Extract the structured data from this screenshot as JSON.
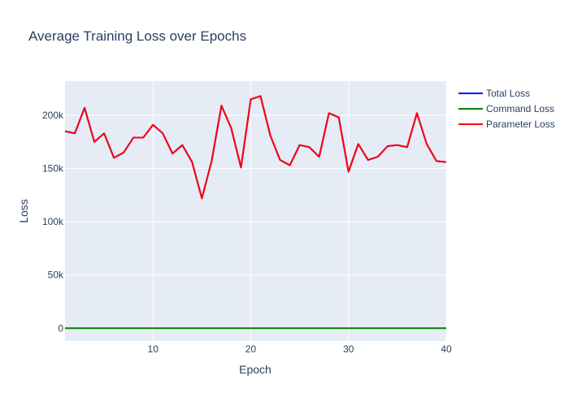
{
  "chart_data": {
    "type": "line",
    "title": "Average Training Loss over Epochs",
    "xlabel": "Epoch",
    "ylabel": "Loss",
    "xlim": [
      1,
      40
    ],
    "ylim": [
      -12000,
      232000
    ],
    "xticks": [
      10,
      20,
      30,
      40
    ],
    "xtick_labels": [
      "10",
      "20",
      "30",
      "40"
    ],
    "yticks": [
      0,
      50000,
      100000,
      150000,
      200000
    ],
    "ytick_labels": [
      "0",
      "50k",
      "100k",
      "150k",
      "200k"
    ],
    "grid": true,
    "legend_position": "top-right",
    "x": [
      1,
      2,
      3,
      4,
      5,
      6,
      7,
      8,
      9,
      10,
      11,
      12,
      13,
      14,
      15,
      16,
      17,
      18,
      19,
      20,
      21,
      22,
      23,
      24,
      25,
      26,
      27,
      28,
      29,
      30,
      31,
      32,
      33,
      34,
      35,
      36,
      37,
      38,
      39,
      40
    ],
    "series": [
      {
        "name": "Total Loss",
        "color": "#0000ff",
        "values": [
          185000,
          183000,
          207000,
          175000,
          183000,
          160000,
          165000,
          179000,
          179000,
          191000,
          183000,
          164000,
          172000,
          156000,
          122000,
          157000,
          209000,
          188000,
          151000,
          215000,
          218000,
          181000,
          158000,
          153000,
          172000,
          170000,
          161000,
          202000,
          198000,
          147000,
          173000,
          158000,
          161000,
          171000,
          172000,
          170000,
          202000,
          173000,
          157000,
          156000
        ]
      },
      {
        "name": "Command Loss",
        "color": "#008000",
        "values": [
          0,
          0,
          0,
          0,
          0,
          0,
          0,
          0,
          0,
          0,
          0,
          0,
          0,
          0,
          0,
          0,
          0,
          0,
          0,
          0,
          0,
          0,
          0,
          0,
          0,
          0,
          0,
          0,
          0,
          0,
          0,
          0,
          0,
          0,
          0,
          0,
          0,
          0,
          0,
          0
        ]
      },
      {
        "name": "Parameter Loss",
        "color": "#ff0000",
        "values": [
          185000,
          183000,
          207000,
          175000,
          183000,
          160000,
          165000,
          179000,
          179000,
          191000,
          183000,
          164000,
          172000,
          156000,
          122000,
          157000,
          209000,
          188000,
          151000,
          215000,
          218000,
          181000,
          158000,
          153000,
          172000,
          170000,
          161000,
          202000,
          198000,
          147000,
          173000,
          158000,
          161000,
          171000,
          172000,
          170000,
          202000,
          173000,
          157000,
          156000
        ]
      }
    ]
  }
}
